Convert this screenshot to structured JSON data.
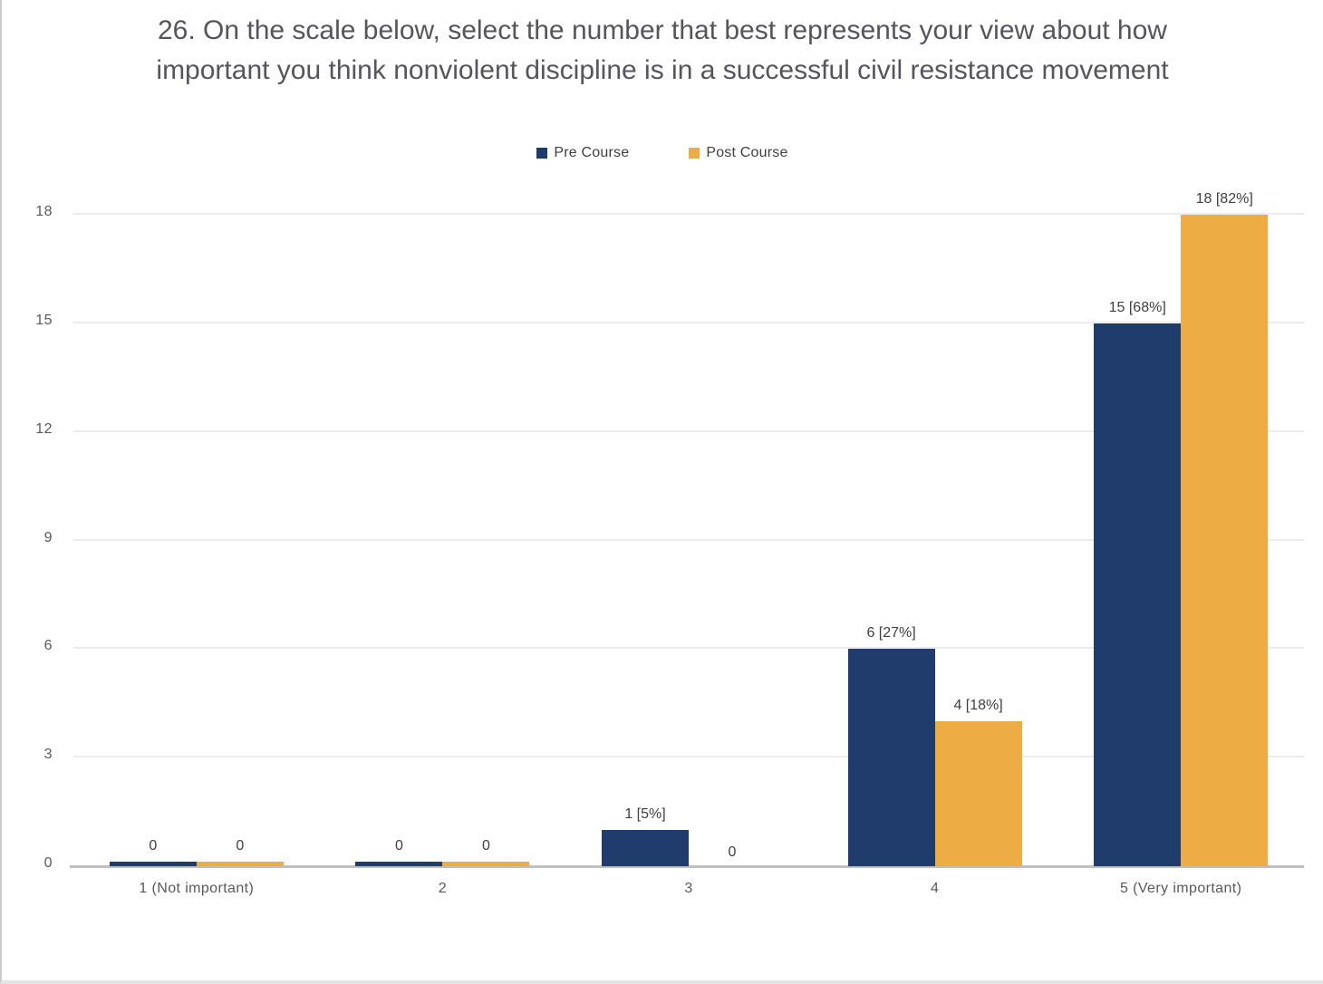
{
  "title": "26. On the scale below, select the number that best represents your view about how important you think nonviolent discipline is in a successful civil resistance movement",
  "legend": [
    {
      "label": "Pre Course",
      "color": "#1F3C6D"
    },
    {
      "label": "Post Course",
      "color": "#EEAC44"
    }
  ],
  "chart_data": {
    "type": "bar",
    "categories": [
      "1 (Not important)",
      "2",
      "3",
      "4",
      "5 (Very important)"
    ],
    "series": [
      {
        "name": "Pre Course",
        "color": "#1F3C6D",
        "values": [
          0,
          0,
          1,
          6,
          15
        ],
        "labels": [
          "0",
          "0",
          "1 [5%]",
          "6 [27%]",
          "15 [68%]"
        ],
        "zero_sliver": [
          true,
          true,
          false,
          false,
          false
        ]
      },
      {
        "name": "Post Course",
        "color": "#EEAC44",
        "values": [
          0,
          0,
          0,
          4,
          18
        ],
        "labels": [
          "0",
          "0",
          "0",
          "4 [18%]",
          "18 [82%]"
        ],
        "zero_sliver": [
          true,
          true,
          false,
          false,
          false
        ]
      }
    ],
    "title": "26. On the scale below, select the number that best represents your view about how important you think nonviolent discipline is in a successful civil resistance movement",
    "xlabel": "",
    "ylabel": "",
    "ylim": [
      0,
      18
    ],
    "yticks": [
      0,
      3,
      6,
      9,
      12,
      15,
      18
    ],
    "grid": true,
    "legend_position": "top-center",
    "colors": {
      "gridline": "#ececec",
      "axis_line": "#bfbfbf",
      "title_text": "#55555c",
      "tick_text": "#595959",
      "data_label_text": "#3f3f3f"
    }
  }
}
